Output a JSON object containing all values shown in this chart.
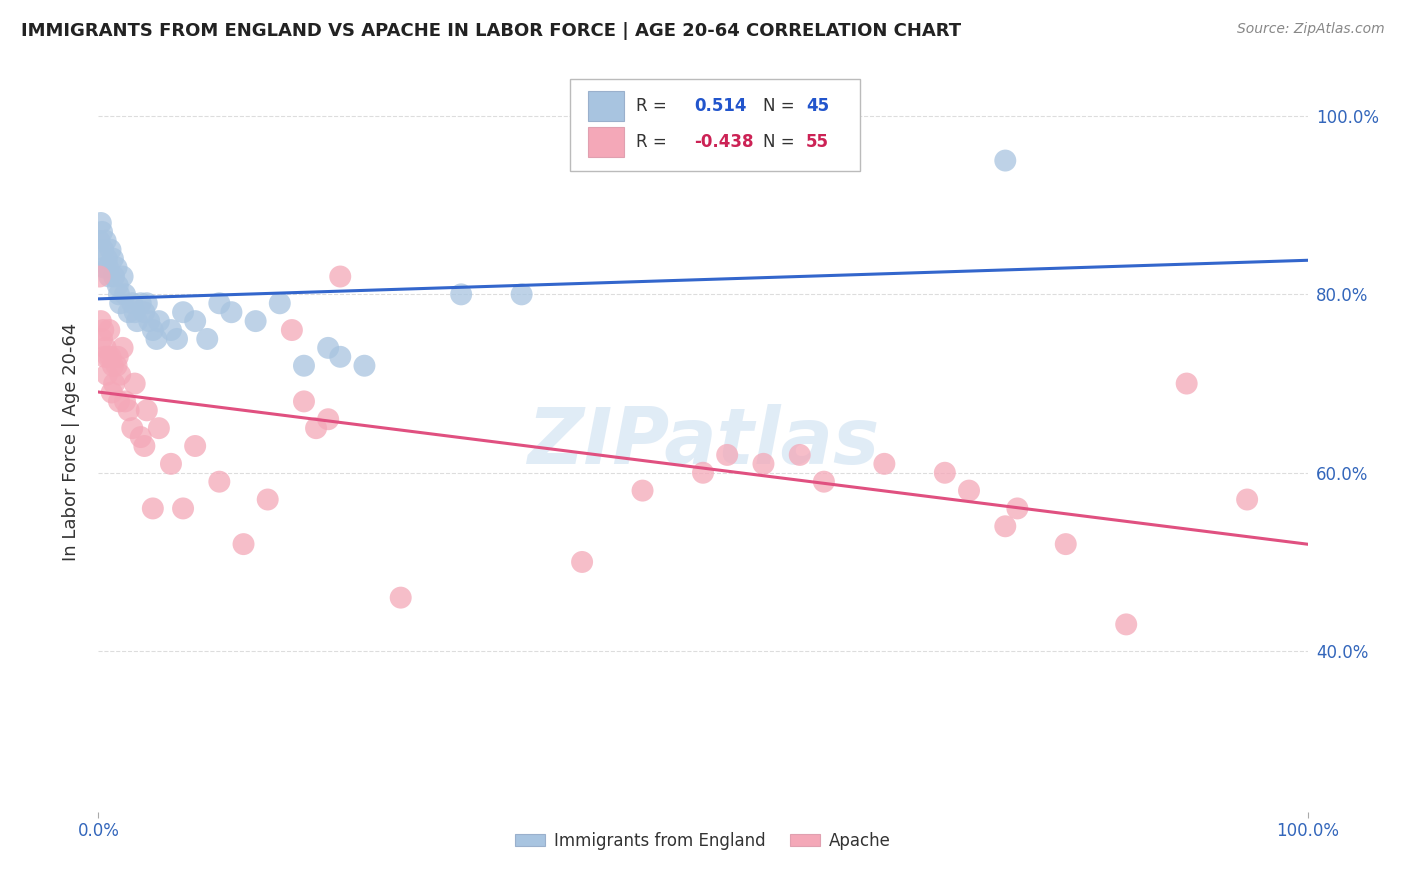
{
  "title": "IMMIGRANTS FROM ENGLAND VS APACHE IN LABOR FORCE | AGE 20-64 CORRELATION CHART",
  "source": "Source: ZipAtlas.com",
  "ylabel": "In Labor Force | Age 20-64",
  "xlim": [
    0.0,
    1.0
  ],
  "ylim": [
    0.22,
    1.05
  ],
  "xtick_positions": [
    0.0,
    1.0
  ],
  "xticklabels": [
    "0.0%",
    "100.0%"
  ],
  "ytick_positions": [
    0.4,
    0.6,
    0.8,
    1.0
  ],
  "yticklabels": [
    "40.0%",
    "60.0%",
    "80.0%",
    "100.0%"
  ],
  "legend_r_england": "0.514",
  "legend_n_england": "45",
  "legend_r_apache": "-0.438",
  "legend_n_apache": "55",
  "england_color": "#a8c4e0",
  "apache_color": "#f4a8b8",
  "england_line_color": "#3366cc",
  "apache_line_color": "#e05080",
  "watermark": "ZIPatlas",
  "england_points": [
    [
      0.001,
      0.86
    ],
    [
      0.002,
      0.88
    ],
    [
      0.003,
      0.87
    ],
    [
      0.004,
      0.85
    ],
    [
      0.005,
      0.83
    ],
    [
      0.006,
      0.86
    ],
    [
      0.007,
      0.84
    ],
    [
      0.008,
      0.83
    ],
    [
      0.009,
      0.82
    ],
    [
      0.01,
      0.85
    ],
    [
      0.012,
      0.84
    ],
    [
      0.013,
      0.82
    ],
    [
      0.015,
      0.83
    ],
    [
      0.016,
      0.81
    ],
    [
      0.017,
      0.8
    ],
    [
      0.018,
      0.79
    ],
    [
      0.02,
      0.82
    ],
    [
      0.022,
      0.8
    ],
    [
      0.025,
      0.78
    ],
    [
      0.028,
      0.79
    ],
    [
      0.03,
      0.78
    ],
    [
      0.032,
      0.77
    ],
    [
      0.035,
      0.79
    ],
    [
      0.038,
      0.78
    ],
    [
      0.04,
      0.79
    ],
    [
      0.042,
      0.77
    ],
    [
      0.045,
      0.76
    ],
    [
      0.048,
      0.75
    ],
    [
      0.05,
      0.77
    ],
    [
      0.06,
      0.76
    ],
    [
      0.065,
      0.75
    ],
    [
      0.07,
      0.78
    ],
    [
      0.08,
      0.77
    ],
    [
      0.09,
      0.75
    ],
    [
      0.1,
      0.79
    ],
    [
      0.11,
      0.78
    ],
    [
      0.13,
      0.77
    ],
    [
      0.15,
      0.79
    ],
    [
      0.17,
      0.72
    ],
    [
      0.19,
      0.74
    ],
    [
      0.2,
      0.73
    ],
    [
      0.22,
      0.72
    ],
    [
      0.3,
      0.8
    ],
    [
      0.35,
      0.8
    ],
    [
      0.75,
      0.95
    ]
  ],
  "apache_points": [
    [
      0.001,
      0.82
    ],
    [
      0.002,
      0.77
    ],
    [
      0.003,
      0.75
    ],
    [
      0.004,
      0.76
    ],
    [
      0.005,
      0.73
    ],
    [
      0.006,
      0.74
    ],
    [
      0.007,
      0.71
    ],
    [
      0.008,
      0.73
    ],
    [
      0.009,
      0.76
    ],
    [
      0.01,
      0.73
    ],
    [
      0.011,
      0.69
    ],
    [
      0.012,
      0.72
    ],
    [
      0.013,
      0.7
    ],
    [
      0.015,
      0.72
    ],
    [
      0.016,
      0.73
    ],
    [
      0.017,
      0.68
    ],
    [
      0.018,
      0.71
    ],
    [
      0.02,
      0.74
    ],
    [
      0.022,
      0.68
    ],
    [
      0.025,
      0.67
    ],
    [
      0.028,
      0.65
    ],
    [
      0.03,
      0.7
    ],
    [
      0.035,
      0.64
    ],
    [
      0.038,
      0.63
    ],
    [
      0.04,
      0.67
    ],
    [
      0.045,
      0.56
    ],
    [
      0.05,
      0.65
    ],
    [
      0.06,
      0.61
    ],
    [
      0.07,
      0.56
    ],
    [
      0.08,
      0.63
    ],
    [
      0.1,
      0.59
    ],
    [
      0.12,
      0.52
    ],
    [
      0.14,
      0.57
    ],
    [
      0.16,
      0.76
    ],
    [
      0.17,
      0.68
    ],
    [
      0.18,
      0.65
    ],
    [
      0.19,
      0.66
    ],
    [
      0.2,
      0.82
    ],
    [
      0.25,
      0.46
    ],
    [
      0.4,
      0.5
    ],
    [
      0.45,
      0.58
    ],
    [
      0.5,
      0.6
    ],
    [
      0.52,
      0.62
    ],
    [
      0.55,
      0.61
    ],
    [
      0.58,
      0.62
    ],
    [
      0.6,
      0.59
    ],
    [
      0.65,
      0.61
    ],
    [
      0.7,
      0.6
    ],
    [
      0.72,
      0.58
    ],
    [
      0.75,
      0.54
    ],
    [
      0.76,
      0.56
    ],
    [
      0.8,
      0.52
    ],
    [
      0.85,
      0.43
    ],
    [
      0.9,
      0.7
    ],
    [
      0.95,
      0.57
    ]
  ],
  "grid_color": "#dddddd",
  "tick_color": "#3366bb"
}
